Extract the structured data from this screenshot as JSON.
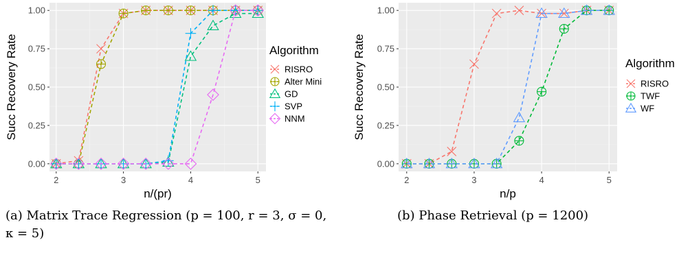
{
  "chart_data": [
    {
      "type": "line",
      "xlabel": "n/(pr)",
      "ylabel": "Succ Recovery Rate",
      "xlim": [
        1.9,
        5.12
      ],
      "ylim": [
        -0.05,
        1.05
      ],
      "x_ticks": [
        "2",
        "3",
        "4",
        "5"
      ],
      "y_ticks": [
        "0.00",
        "0.25",
        "0.50",
        "0.75",
        "1.00"
      ],
      "grid": true,
      "legend": {
        "title": "Algorithm",
        "position": "right"
      },
      "series": [
        {
          "name": "RISRO",
          "color": "#F8766D",
          "marker": "x",
          "x": [
            2,
            2.333,
            2.667,
            3,
            3.333,
            3.667,
            4,
            4.333,
            4.667,
            5
          ],
          "y": [
            0,
            0.02,
            0.75,
            0.98,
            1.0,
            1.0,
            1.0,
            1.0,
            1.0,
            1.0
          ]
        },
        {
          "name": "Alter Mini",
          "color": "#A3A500",
          "marker": "circle-plus",
          "x": [
            2,
            2.333,
            2.667,
            3,
            3.333,
            3.667,
            4,
            4.333,
            4.667,
            5
          ],
          "y": [
            0,
            0,
            0.65,
            0.98,
            1.0,
            1.0,
            1.0,
            1.0,
            1.0,
            1.0
          ]
        },
        {
          "name": "GD",
          "color": "#00BF7D",
          "marker": "triangle",
          "x": [
            2,
            2.333,
            2.667,
            3,
            3.333,
            3.667,
            4,
            4.333,
            4.667,
            5
          ],
          "y": [
            0,
            0,
            0,
            0,
            0,
            0.01,
            0.7,
            0.9,
            0.98,
            0.98
          ]
        },
        {
          "name": "SVP",
          "color": "#00B0F6",
          "marker": "plus",
          "x": [
            2,
            2.333,
            2.667,
            3,
            3.333,
            3.667,
            4,
            4.333,
            4.667,
            5
          ],
          "y": [
            0,
            0,
            0,
            0,
            0,
            0.02,
            0.85,
            1.0,
            1.0,
            1.0
          ]
        },
        {
          "name": "NNM",
          "color": "#E76BF3",
          "marker": "diamond",
          "x": [
            2,
            2.333,
            2.667,
            3,
            3.333,
            3.667,
            4,
            4.333,
            4.667,
            5
          ],
          "y": [
            0,
            0,
            0,
            0,
            0,
            0,
            0,
            0.45,
            1.0,
            1.0
          ]
        }
      ]
    },
    {
      "type": "line",
      "xlabel": "n/p",
      "ylabel": "Succ Recovery Rate",
      "xlim": [
        1.88,
        5.12
      ],
      "ylim": [
        -0.05,
        1.05
      ],
      "x_ticks": [
        "2",
        "3",
        "4",
        "5"
      ],
      "y_ticks": [
        "0.00",
        "0.25",
        "0.50",
        "0.75",
        "1.00"
      ],
      "grid": true,
      "legend": {
        "title": "Algorithm",
        "position": "right"
      },
      "series": [
        {
          "name": "RISRO",
          "color": "#F8766D",
          "marker": "x",
          "x": [
            2,
            2.333,
            2.667,
            3,
            3.333,
            3.667,
            4,
            4.333,
            4.667,
            5
          ],
          "y": [
            0,
            0,
            0.08,
            0.65,
            0.98,
            1.0,
            0.98,
            0.98,
            1.0,
            1.0
          ]
        },
        {
          "name": "TWF",
          "color": "#00BA38",
          "marker": "circle-plus",
          "x": [
            2,
            2.333,
            2.667,
            3,
            3.333,
            3.667,
            4,
            4.333,
            4.667,
            5
          ],
          "y": [
            0,
            0,
            0,
            0,
            0,
            0.15,
            0.47,
            0.88,
            1.0,
            1.0
          ]
        },
        {
          "name": "WF",
          "color": "#619CFF",
          "marker": "triangle",
          "x": [
            2,
            2.333,
            2.667,
            3,
            3.333,
            3.667,
            4,
            4.333,
            4.667,
            5
          ],
          "y": [
            0,
            0,
            0,
            0,
            0,
            0.3,
            0.98,
            0.98,
            1.0,
            1.0
          ]
        }
      ]
    }
  ],
  "captions": {
    "a": "(a) Matrix Trace Regression (p = 100, r = 3, σ = 0, κ = 5)",
    "b": "(b) Phase Retrieval (p = 1200)"
  }
}
